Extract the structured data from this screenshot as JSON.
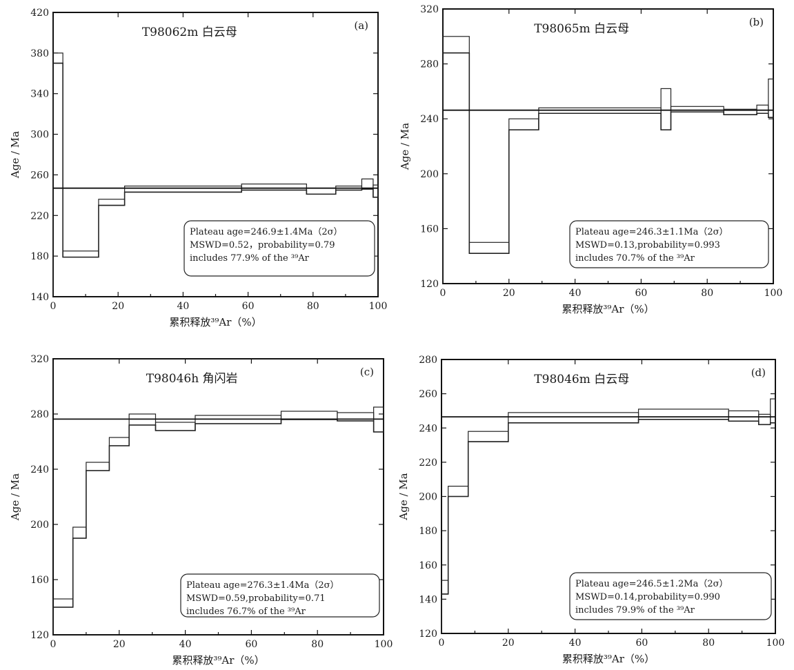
{
  "chart_data": [
    {
      "type": "step",
      "panel": "(a)",
      "title": "T98062m 白云母",
      "xlabel": "累积释放³⁹Ar（%）",
      "ylabel": "Age / Ma",
      "xlim": [
        0,
        100
      ],
      "ylim": [
        140,
        420
      ],
      "xticks": [
        0,
        20,
        40,
        60,
        80,
        100
      ],
      "yticks": [
        140,
        180,
        220,
        260,
        300,
        340,
        380,
        420
      ],
      "steps": [
        {
          "x0": 0,
          "x1": 3,
          "age": 375,
          "err": 5
        },
        {
          "x0": 3,
          "x1": 14,
          "age": 182,
          "err": 3
        },
        {
          "x0": 14,
          "x1": 22,
          "age": 233,
          "err": 3
        },
        {
          "x0": 22,
          "x1": 58,
          "age": 246,
          "err": 3
        },
        {
          "x0": 58,
          "x1": 78,
          "age": 248,
          "err": 3
        },
        {
          "x0": 78,
          "x1": 87,
          "age": 244,
          "err": 3
        },
        {
          "x0": 87,
          "x1": 95,
          "age": 247,
          "err": 2
        },
        {
          "x0": 95,
          "x1": 98.5,
          "age": 251,
          "err": 5
        },
        {
          "x0": 98.5,
          "x1": 100,
          "age": 244,
          "err": 6
        }
      ],
      "plateau_age": 246.9,
      "stats": [
        "Plateau age=246.9±1.4Ma（2σ）",
        "MSWD=0.52，probability=0.79",
        "includes 77.9% of the ³⁹Ar"
      ]
    },
    {
      "type": "step",
      "panel": "(b)",
      "title": "T98065m 白云母",
      "xlabel": "累积释放³⁹Ar（%）",
      "ylabel": "Age / Ma",
      "xlim": [
        0,
        100
      ],
      "ylim": [
        120,
        320
      ],
      "xticks": [
        0,
        20,
        40,
        60,
        80,
        100
      ],
      "yticks": [
        120,
        160,
        200,
        240,
        280,
        320
      ],
      "steps": [
        {
          "x0": 0,
          "x1": 8,
          "age": 294,
          "err": 6
        },
        {
          "x0": 8,
          "x1": 20,
          "age": 146,
          "err": 4
        },
        {
          "x0": 20,
          "x1": 29,
          "age": 236,
          "err": 4
        },
        {
          "x0": 29,
          "x1": 66,
          "age": 246,
          "err": 2
        },
        {
          "x0": 66,
          "x1": 69,
          "age": 247,
          "err": 15
        },
        {
          "x0": 69,
          "x1": 85,
          "age": 247,
          "err": 2
        },
        {
          "x0": 85,
          "x1": 95,
          "age": 245,
          "err": 2
        },
        {
          "x0": 95,
          "x1": 98.5,
          "age": 247,
          "err": 3
        },
        {
          "x0": 98.5,
          "x1": 100,
          "age": 255,
          "err": 14
        }
      ],
      "plateau_age": 246.3,
      "stats": [
        "Plateau age=246.3±1.1Ma（2σ）",
        "MSWD=0.13,probability=0.993",
        "includes 70.7% of the ³⁹Ar"
      ]
    },
    {
      "type": "step",
      "panel": "(c)",
      "title": "T98046h 角闪岩",
      "xlabel": "累积释放³⁹Ar（%）",
      "ylabel": "Age / Ma",
      "xlim": [
        0,
        100
      ],
      "ylim": [
        120,
        320
      ],
      "xticks": [
        0,
        20,
        40,
        60,
        80,
        100
      ],
      "yticks": [
        120,
        160,
        200,
        240,
        280,
        320
      ],
      "steps": [
        {
          "x0": 0,
          "x1": 6,
          "age": 143,
          "err": 3
        },
        {
          "x0": 6,
          "x1": 10,
          "age": 194,
          "err": 4
        },
        {
          "x0": 10,
          "x1": 17,
          "age": 242,
          "err": 3
        },
        {
          "x0": 17,
          "x1": 23,
          "age": 260,
          "err": 3
        },
        {
          "x0": 23,
          "x1": 31,
          "age": 276,
          "err": 4
        },
        {
          "x0": 31,
          "x1": 43,
          "age": 271,
          "err": 3
        },
        {
          "x0": 43,
          "x1": 69,
          "age": 276,
          "err": 3
        },
        {
          "x0": 69,
          "x1": 86,
          "age": 279,
          "err": 3
        },
        {
          "x0": 86,
          "x1": 97,
          "age": 278,
          "err": 3
        },
        {
          "x0": 97,
          "x1": 100,
          "age": 276,
          "err": 9
        }
      ],
      "plateau_age": 276.3,
      "stats": [
        "Plateau age=276.3±1.4Ma（2σ）",
        "MSWD=0.59,probability=0.71",
        "includes 76.7% of the ³⁹Ar"
      ]
    },
    {
      "type": "step",
      "panel": "(d)",
      "title": "T98046m 白云母",
      "xlabel": "累积释放³⁹Ar（%）",
      "ylabel": "Age / Ma",
      "xlim": [
        0,
        100
      ],
      "ylim": [
        120,
        280
      ],
      "xticks": [
        0,
        20,
        40,
        60,
        80,
        100
      ],
      "yticks": [
        120,
        140,
        160,
        180,
        200,
        220,
        240,
        260,
        280
      ],
      "steps": [
        {
          "x0": 0,
          "x1": 2,
          "age": 147,
          "err": 4
        },
        {
          "x0": 2,
          "x1": 8,
          "age": 203,
          "err": 3
        },
        {
          "x0": 8,
          "x1": 20,
          "age": 235,
          "err": 3
        },
        {
          "x0": 20,
          "x1": 59,
          "age": 246,
          "err": 3
        },
        {
          "x0": 59,
          "x1": 86,
          "age": 248,
          "err": 3
        },
        {
          "x0": 86,
          "x1": 95,
          "age": 247,
          "err": 3
        },
        {
          "x0": 95,
          "x1": 98.5,
          "age": 245,
          "err": 3
        },
        {
          "x0": 98.5,
          "x1": 100,
          "age": 250,
          "err": 7
        }
      ],
      "plateau_age": 246.5,
      "stats": [
        "Plateau age=246.5±1.2Ma（2σ）",
        "MSWD=0.14,probability=0.990",
        "includes 79.9% of the ³⁹Ar"
      ]
    }
  ]
}
